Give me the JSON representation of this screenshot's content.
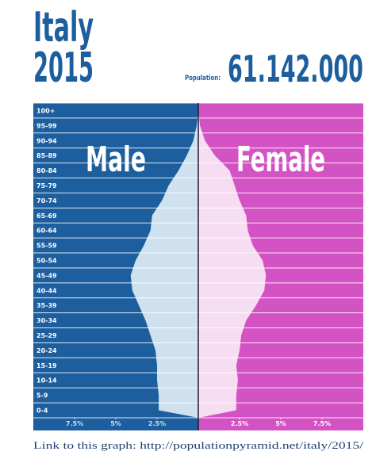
{
  "chart_data": {
    "type": "population-pyramid",
    "title": "Italy",
    "subtitle": "2015",
    "population_label": "Population:",
    "population": "61.142.000",
    "categories": [
      "0-4",
      "5-9",
      "10-14",
      "15-19",
      "20-24",
      "25-29",
      "30-34",
      "35-39",
      "40-44",
      "45-49",
      "50-54",
      "55-59",
      "60-64",
      "65-69",
      "70-74",
      "75-79",
      "80-84",
      "85-89",
      "90-94",
      "95-99",
      "100+"
    ],
    "series": [
      {
        "name": "Male",
        "color": "#1d5e9e",
        "fill": "#cfe1ee",
        "tick_color": "#cfe1ee",
        "values": [
          2.4,
          2.4,
          2.5,
          2.5,
          2.6,
          2.9,
          3.2,
          3.6,
          4.0,
          4.1,
          3.8,
          3.3,
          2.9,
          2.8,
          2.2,
          1.8,
          1.2,
          0.7,
          0.3,
          0.1,
          0.0
        ]
      },
      {
        "name": "Female",
        "color": "#d453c4",
        "fill": "#f7ddf1",
        "tick_color": "#ffffff",
        "values": [
          2.3,
          2.3,
          2.4,
          2.3,
          2.5,
          2.6,
          2.9,
          3.5,
          4.0,
          4.1,
          3.9,
          3.3,
          3.0,
          2.9,
          2.5,
          2.2,
          1.9,
          1.0,
          0.4,
          0.1,
          0.0
        ]
      }
    ],
    "xlim": [
      0,
      10
    ],
    "male_xticks": [
      {
        "value": 2.5,
        "label": "2.5%"
      },
      {
        "value": 5,
        "label": "5%"
      },
      {
        "value": 7.5,
        "label": "7.5%"
      }
    ],
    "female_xticks": [
      {
        "value": 2.5,
        "label": "2.5%"
      },
      {
        "value": 5,
        "label": "5%"
      },
      {
        "value": 7.5,
        "label": "7.5%"
      }
    ],
    "footer": "Link to this graph: http://populationpyramid.net/italy/2015/"
  }
}
